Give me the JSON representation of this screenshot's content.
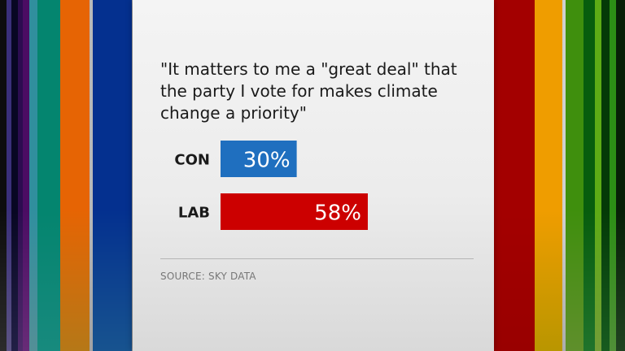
{
  "chart_data": {
    "type": "bar",
    "orientation": "horizontal",
    "title": "\"It matters to me a \"great deal\" that the party I vote for makes climate change a priority\"",
    "categories": [
      "CON",
      "LAB"
    ],
    "values": [
      30,
      58
    ],
    "value_labels": [
      "30%",
      "58%"
    ],
    "unit": "%",
    "bar_colors": [
      "#1f6fbf",
      "#cc0000"
    ],
    "xlim": [
      0,
      100
    ],
    "grid": false,
    "legend": "none"
  },
  "footer": {
    "source": "SOURCE: SKY DATA"
  },
  "colors": {
    "panel": "#efefef",
    "label_text": "#1a1a1a",
    "value_text": "#ffffff",
    "source_text": "#777777"
  }
}
